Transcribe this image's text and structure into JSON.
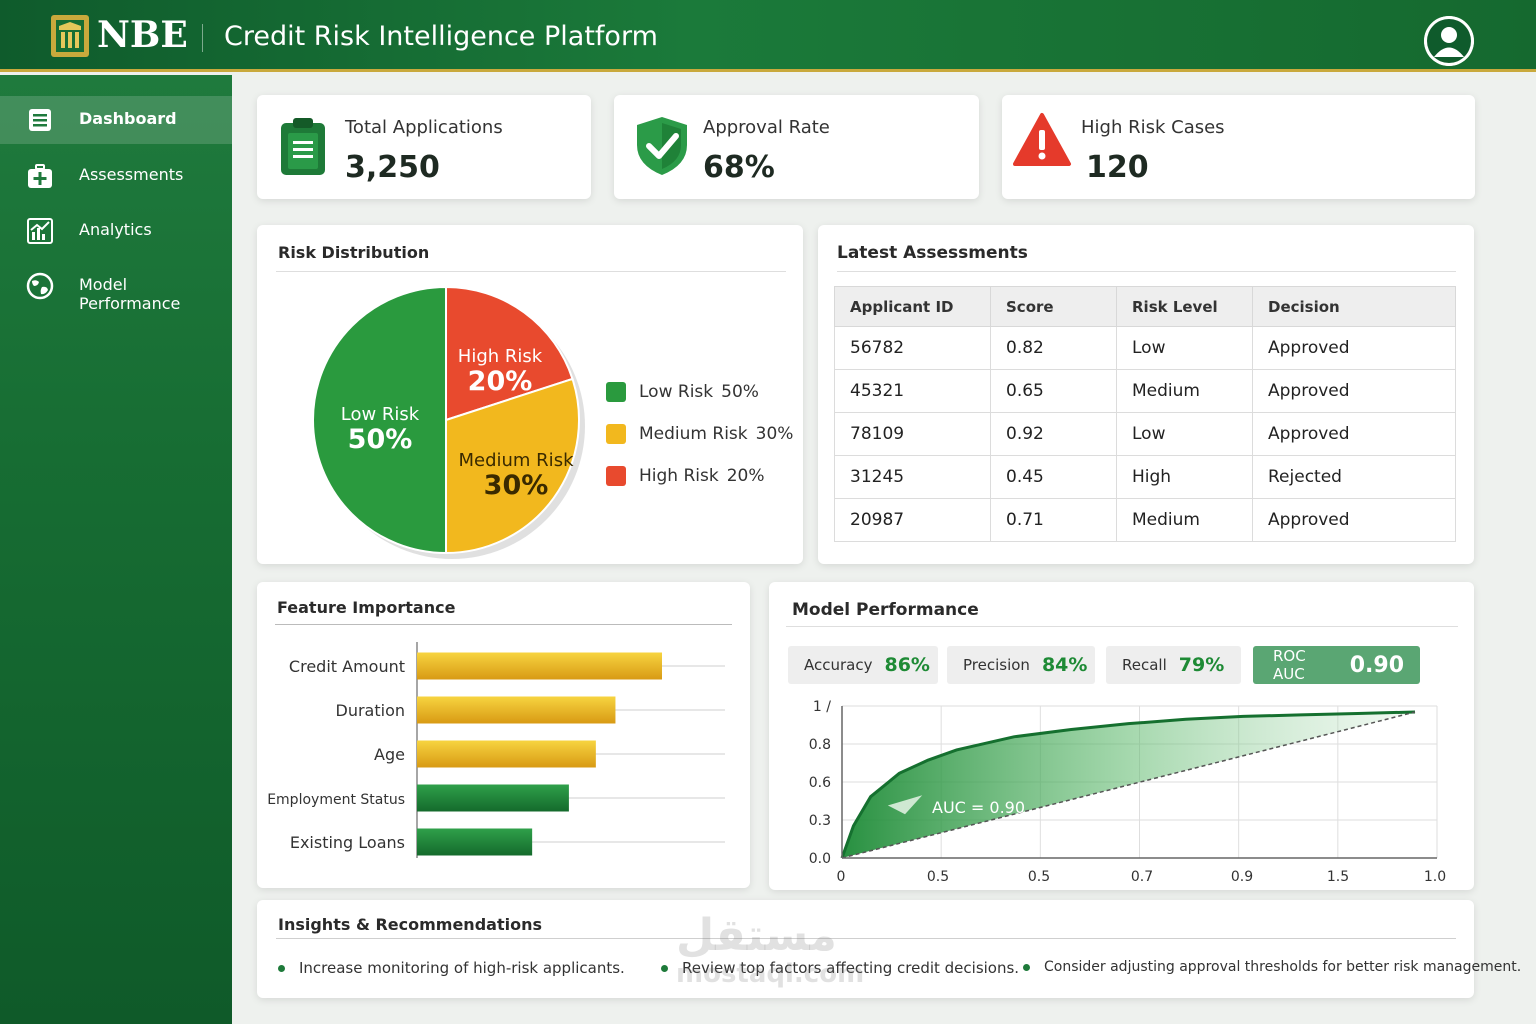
{
  "header": {
    "brand": "NBE",
    "title": "Credit Risk Intelligence Platform",
    "avatar_icon": "user-avatar-icon"
  },
  "sidebar": {
    "items": [
      {
        "label": "Dashboard",
        "icon": "dashboard-icon",
        "active": true
      },
      {
        "label": "Assessments",
        "icon": "medical-kit-icon",
        "active": false
      },
      {
        "label": "Analytics",
        "icon": "analytics-chart-icon",
        "active": false
      },
      {
        "label": "Model Performance",
        "icon": "globe-icon",
        "active": false
      }
    ]
  },
  "kpis": [
    {
      "label": "Total Applications",
      "value": "3,250",
      "icon": "clipboard-icon"
    },
    {
      "label": "Approval Rate",
      "value": "68%",
      "icon": "shield-check-icon"
    },
    {
      "label": "High Risk Cases",
      "value": "120",
      "icon": "warning-icon"
    }
  ],
  "risk_distribution": {
    "title": "Risk Distribution",
    "slices": [
      {
        "label": "Low Risk",
        "pct_label": "50%",
        "value": 50,
        "color": "#2a9a3e"
      },
      {
        "label": "Medium Risk",
        "pct_label": "30%",
        "value": 30,
        "color": "#f2b81e"
      },
      {
        "label": "High Risk",
        "pct_label": "20%",
        "value": 20,
        "color": "#e84a2e"
      }
    ]
  },
  "latest_assessments": {
    "title": "Latest Assessments",
    "columns": [
      "Applicant ID",
      "Score",
      "Risk Level",
      "Decision"
    ],
    "rows": [
      {
        "id": "56782",
        "score": "0.82",
        "risk": "Low",
        "decision": "Approved",
        "status": "ok"
      },
      {
        "id": "45321",
        "score": "0.65",
        "risk": "Medium",
        "decision": "Approved",
        "status": "ok"
      },
      {
        "id": "78109",
        "score": "0.92",
        "risk": "Low",
        "decision": "Approved",
        "status": "ok"
      },
      {
        "id": "31245",
        "score": "0.45",
        "risk": "High",
        "decision": "Rejected",
        "status": "bad"
      },
      {
        "id": "20987",
        "score": "0.71",
        "risk": "Medium",
        "decision": "Approved",
        "status": "ok"
      }
    ]
  },
  "feature_importance": {
    "title": "Feature Importance",
    "chart_data": {
      "type": "bar",
      "orientation": "horizontal",
      "categories": [
        "Credit Amount",
        "Duration",
        "Age",
        "Employment Status",
        "Existing Loans"
      ],
      "values": [
        1.0,
        0.81,
        0.73,
        0.62,
        0.47
      ],
      "colors": [
        "#e8b21c",
        "#e8b21c",
        "#e8b21c",
        "#1e8a3a",
        "#1e8a3a"
      ]
    }
  },
  "model_performance": {
    "title": "Model Performance",
    "metrics": [
      {
        "label": "Accuracy",
        "value": "86%"
      },
      {
        "label": "Precision",
        "value": "84%"
      },
      {
        "label": "Recall",
        "value": "79%"
      },
      {
        "label": "ROC AUC",
        "value": "0.90"
      }
    ],
    "chart_data": {
      "type": "area",
      "annotation": "AUC = 0.90",
      "x_tick_labels": [
        "0",
        "0.5",
        "0.5",
        "0.7",
        "0.9",
        "1.5",
        "1.0"
      ],
      "y_tick_labels": [
        "0.0",
        "0.3",
        "0.6",
        "0.8",
        "1 /"
      ],
      "x": [
        0,
        0.02,
        0.05,
        0.1,
        0.15,
        0.2,
        0.3,
        0.4,
        0.5,
        0.6,
        0.7,
        0.8,
        0.9,
        1.0
      ],
      "y": [
        0,
        0.22,
        0.42,
        0.58,
        0.67,
        0.74,
        0.83,
        0.88,
        0.92,
        0.95,
        0.97,
        0.98,
        0.99,
        1.0
      ],
      "grid": true,
      "diagonal": true
    }
  },
  "insights": {
    "title": "Insights & Recommendations",
    "items": [
      "Increase monitoring of high-risk applicants.",
      "Review top factors affecting credit decisions.",
      "Consider adjusting approval thresholds for better risk management."
    ]
  },
  "watermark": {
    "arabic": "مستقل",
    "latin": "mostaql.com"
  }
}
